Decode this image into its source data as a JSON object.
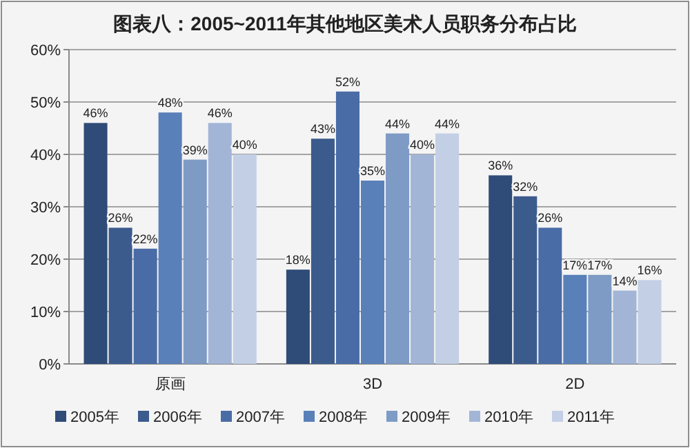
{
  "chart_data": {
    "type": "bar",
    "title": "图表八：2005~2011年其他地区美术人员职务分布占比",
    "categories": [
      "原画",
      "3D",
      "2D"
    ],
    "series": [
      {
        "name": "2005年",
        "color": "#2f4b78",
        "values": [
          46,
          18,
          36
        ],
        "value_labels": [
          "46%",
          "18%",
          "36%"
        ]
      },
      {
        "name": "2006年",
        "color": "#3c5b8d",
        "values": [
          26,
          43,
          32
        ],
        "value_labels": [
          "26%",
          "43%",
          "32%"
        ]
      },
      {
        "name": "2007年",
        "color": "#4a6ca6",
        "values": [
          22,
          52,
          26
        ],
        "value_labels": [
          "22%",
          "52%",
          "26%"
        ]
      },
      {
        "name": "2008年",
        "color": "#5a80b9",
        "values": [
          48,
          35,
          17
        ],
        "value_labels": [
          "48%",
          "35%",
          "17%"
        ]
      },
      {
        "name": "2009年",
        "color": "#7e9bc5",
        "values": [
          39,
          44,
          17
        ],
        "value_labels": [
          "39%",
          "44%",
          "17%"
        ]
      },
      {
        "name": "2010年",
        "color": "#a2b5d7",
        "values": [
          46,
          40,
          14
        ],
        "value_labels": [
          "46%",
          "40%",
          "14%"
        ]
      },
      {
        "name": "2011年",
        "color": "#c3cfe5",
        "values": [
          40,
          44,
          16
        ],
        "value_labels": [
          "40%",
          "44%",
          "16%"
        ]
      }
    ],
    "ylim": [
      0,
      60
    ],
    "yticks": [
      {
        "value": 0,
        "label": "0%"
      },
      {
        "value": 10,
        "label": "10%"
      },
      {
        "value": 20,
        "label": "20%"
      },
      {
        "value": 30,
        "label": "30%"
      },
      {
        "value": 40,
        "label": "40%"
      },
      {
        "value": 50,
        "label": "50%"
      },
      {
        "value": 60,
        "label": "60%"
      }
    ],
    "grid": "y",
    "legend": "bottom"
  }
}
